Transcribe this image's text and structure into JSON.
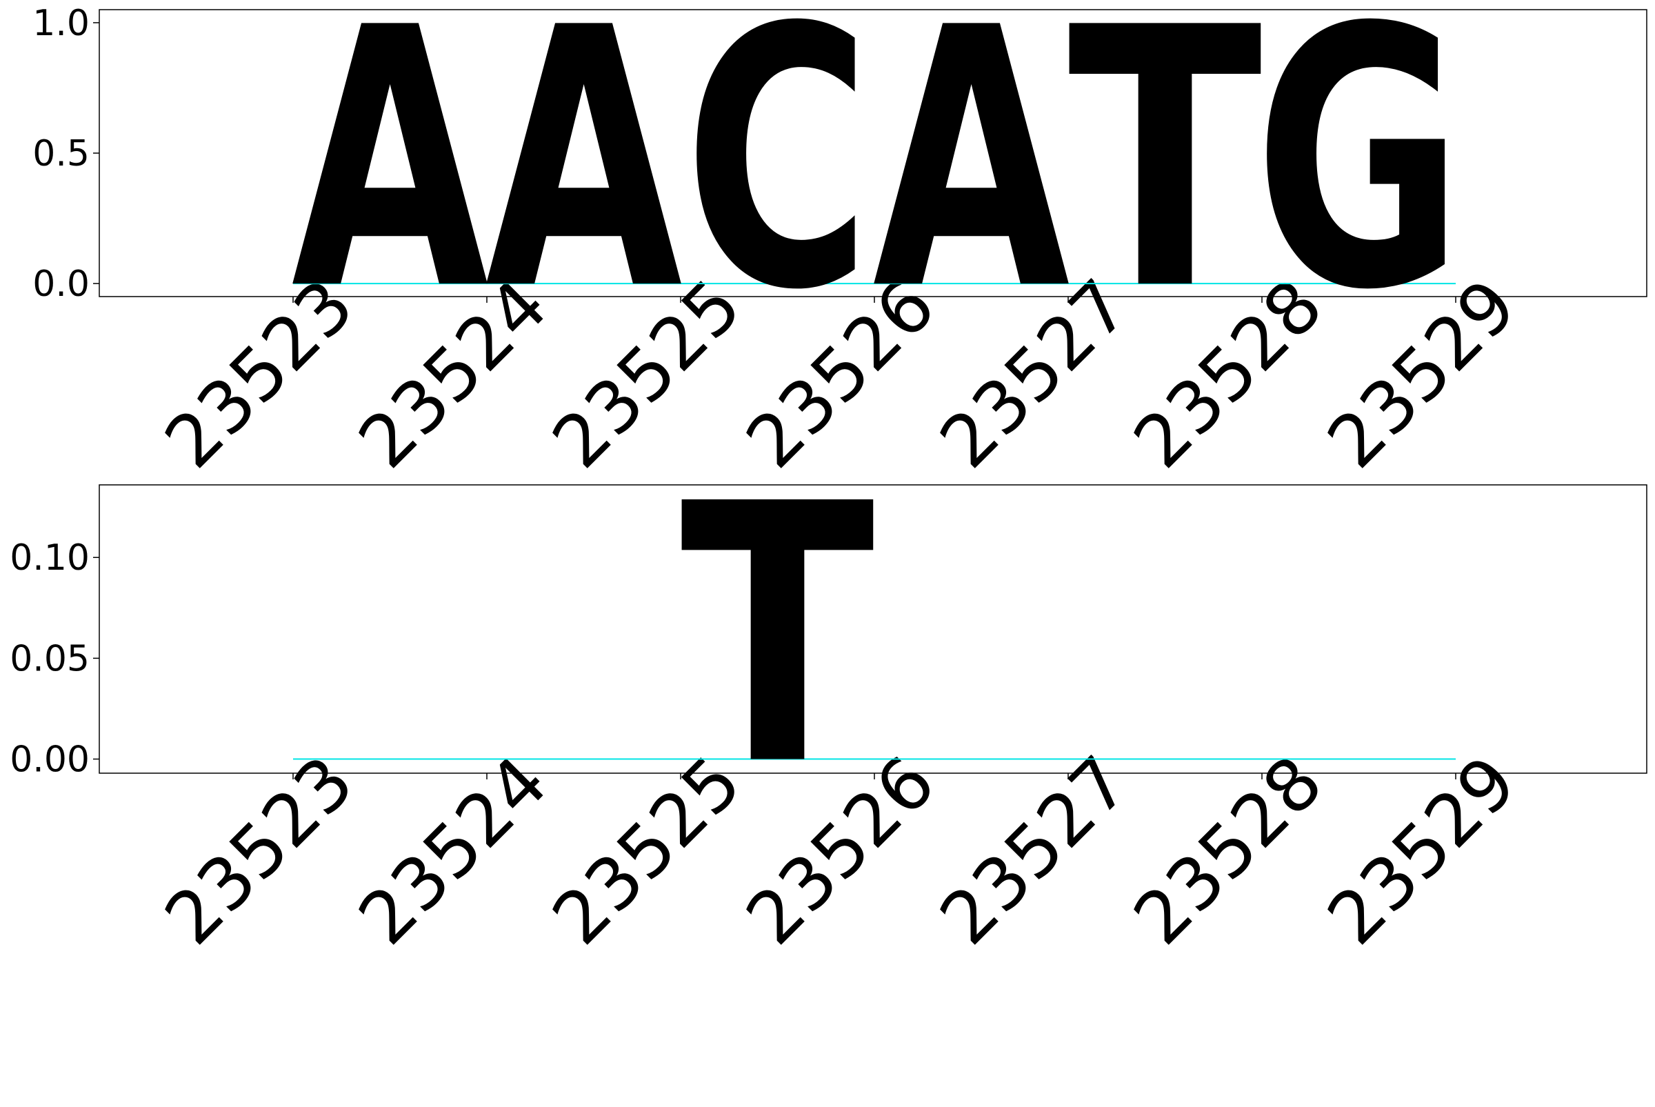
{
  "chart_data": [
    {
      "type": "bar",
      "subtype": "sequence-logo",
      "title": "",
      "xlabel": "",
      "ylabel": "",
      "categories": [
        "23523",
        "23524",
        "23525",
        "23526",
        "23527",
        "23528",
        "23529"
      ],
      "ylim": [
        -0.05,
        1.05
      ],
      "yticks": [
        "0.0",
        "0.5",
        "1.0"
      ],
      "grid": false,
      "legend": "none",
      "letters": [
        {
          "position": "23523",
          "letter": "A",
          "value": 1.0
        },
        {
          "position": "23524",
          "letter": "A",
          "value": 1.0
        },
        {
          "position": "23525",
          "letter": "C",
          "value": 1.0
        },
        {
          "position": "23526",
          "letter": "A",
          "value": 1.0
        },
        {
          "position": "23527",
          "letter": "T",
          "value": 1.0
        },
        {
          "position": "23528",
          "letter": "G",
          "value": 1.0
        }
      ]
    },
    {
      "type": "bar",
      "subtype": "sequence-logo",
      "title": "",
      "xlabel": "",
      "ylabel": "",
      "categories": [
        "23523",
        "23524",
        "23525",
        "23526",
        "23527",
        "23528",
        "23529"
      ],
      "ylim": [
        -0.007,
        0.136
      ],
      "yticks": [
        "0.00",
        "0.05",
        "0.10"
      ],
      "grid": false,
      "legend": "none",
      "letters": [
        {
          "position": "23525",
          "letter": "T",
          "value": 0.129
        }
      ]
    }
  ],
  "letter_colors": {
    "A": "#008000",
    "C": "#ffa500",
    "G": "#ff0000",
    "T": "#00ffff"
  }
}
